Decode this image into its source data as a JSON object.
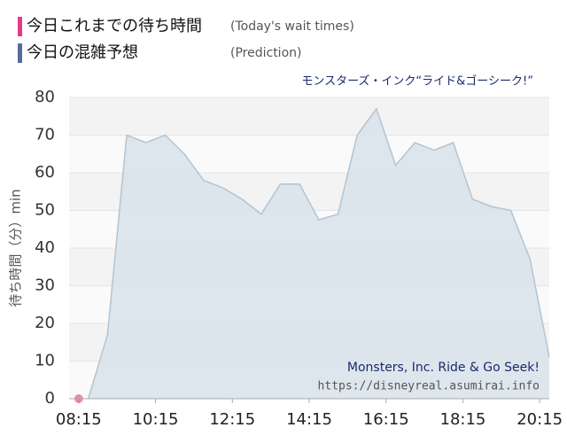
{
  "chart_data": {
    "type": "area",
    "title": "モンスターズ・インク“ライド&ゴーシーク!”",
    "watermark_title": "Monsters, Inc. Ride & Go Seek!",
    "watermark_url": "https://disneyreal.asumirai.info",
    "y_label": "待ち時間（分）min",
    "xlim": [
      "08:00",
      "20:30"
    ],
    "xticks": [
      "08:15",
      "10:15",
      "12:15",
      "14:15",
      "16:15",
      "18:15",
      "20:15"
    ],
    "ylim": [
      0,
      80
    ],
    "yticks": [
      0,
      10,
      20,
      30,
      40,
      50,
      60,
      70,
      80
    ],
    "grid": true,
    "series": [
      {
        "name": "今日これまでの待ち時間",
        "subname": "(Today's wait times)",
        "color": "#e8388a",
        "kind": "points",
        "x": [
          "08:15"
        ],
        "values": [
          0
        ]
      },
      {
        "name": "今日の混雑予想",
        "subname": "(Prediction)",
        "color": "#5a6b9a",
        "fill": "#d9e3eb",
        "stroke": "#b4c4d2",
        "kind": "area",
        "x": [
          "08:30",
          "09:00",
          "09:30",
          "10:00",
          "10:30",
          "11:00",
          "11:30",
          "12:00",
          "12:30",
          "13:00",
          "13:30",
          "14:00",
          "14:30",
          "15:00",
          "15:30",
          "16:00",
          "16:30",
          "17:00",
          "17:30",
          "18:00",
          "18:30",
          "19:00",
          "19:30",
          "20:00",
          "20:30"
        ],
        "values": [
          0,
          17,
          70,
          68,
          70,
          65,
          58,
          56,
          53,
          49,
          57,
          57,
          47.5,
          49,
          70,
          77,
          62,
          68,
          66,
          68,
          53,
          51,
          50,
          37,
          11
        ]
      }
    ]
  }
}
